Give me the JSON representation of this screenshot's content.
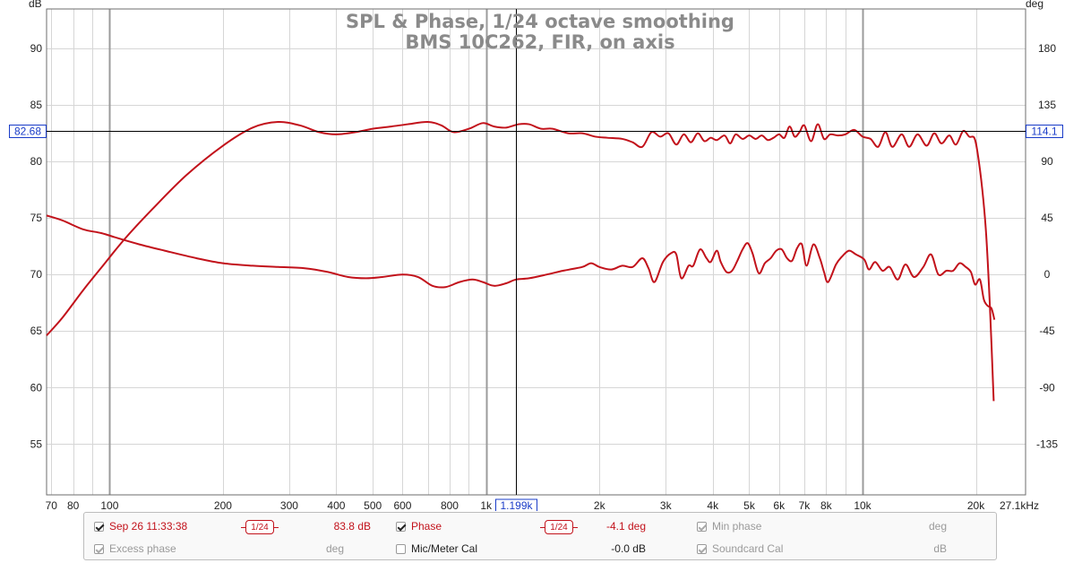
{
  "chart_data": {
    "type": "line",
    "title": "SPL & Phase, 1/24 octave smoothing",
    "subtitle": "BMS 10C262, FIR, on axis",
    "xscale": "log",
    "xlim": [
      68,
      27100
    ],
    "x_ticks": [
      {
        "v": 70,
        "label": "70"
      },
      {
        "v": 80,
        "label": "80"
      },
      {
        "v": 100,
        "label": "100"
      },
      {
        "v": 200,
        "label": "200"
      },
      {
        "v": 300,
        "label": "300"
      },
      {
        "v": 400,
        "label": "400"
      },
      {
        "v": 500,
        "label": "500"
      },
      {
        "v": 600,
        "label": "600"
      },
      {
        "v": 800,
        "label": "800"
      },
      {
        "v": 1000,
        "label": "1k"
      },
      {
        "v": 2000,
        "label": "2k"
      },
      {
        "v": 3000,
        "label": "3k"
      },
      {
        "v": 4000,
        "label": "4k"
      },
      {
        "v": 5000,
        "label": "5k"
      },
      {
        "v": 6000,
        "label": "6k"
      },
      {
        "v": 7000,
        "label": "7k"
      },
      {
        "v": 8000,
        "label": "8k"
      },
      {
        "v": 10000,
        "label": "10k"
      },
      {
        "v": 20000,
        "label": "20k"
      }
    ],
    "x_end_label": "27.1kHz",
    "y_left": {
      "unit": "dB",
      "range": [
        50.5,
        93.5
      ],
      "ticks": [
        55,
        60,
        65,
        70,
        75,
        80,
        85,
        90
      ]
    },
    "y_right": {
      "unit": "deg",
      "range": [
        -175.5,
        211.5
      ],
      "ticks": [
        -135,
        -90,
        -45,
        0,
        45,
        90,
        135,
        180
      ]
    },
    "grid": true,
    "cursor": {
      "x": 1199,
      "x_label": "1.199k",
      "y_left_label": "82.68",
      "y_right_label": "114.1"
    },
    "series": [
      {
        "name": "Sep 26 11:33:38",
        "axis": "left",
        "color": "#c2121b",
        "points": [
          [
            68,
            64.6
          ],
          [
            75,
            66.2
          ],
          [
            85,
            68.6
          ],
          [
            95,
            70.6
          ],
          [
            110,
            73.2
          ],
          [
            130,
            75.8
          ],
          [
            160,
            78.8
          ],
          [
            200,
            81.4
          ],
          [
            240,
            83.0
          ],
          [
            280,
            83.5
          ],
          [
            320,
            83.2
          ],
          [
            360,
            82.6
          ],
          [
            400,
            82.4
          ],
          [
            450,
            82.6
          ],
          [
            500,
            82.9
          ],
          [
            560,
            83.1
          ],
          [
            620,
            83.3
          ],
          [
            700,
            83.5
          ],
          [
            760,
            83.2
          ],
          [
            820,
            82.6
          ],
          [
            900,
            82.9
          ],
          [
            980,
            83.4
          ],
          [
            1050,
            83.1
          ],
          [
            1130,
            83.0
          ],
          [
            1220,
            83.3
          ],
          [
            1300,
            83.3
          ],
          [
            1400,
            82.9
          ],
          [
            1500,
            82.9
          ],
          [
            1650,
            82.5
          ],
          [
            1800,
            82.5
          ],
          [
            1950,
            82.2
          ],
          [
            2100,
            82.1
          ],
          [
            2300,
            82.0
          ],
          [
            2450,
            81.7
          ],
          [
            2600,
            81.3
          ],
          [
            2750,
            82.6
          ],
          [
            2900,
            82.2
          ],
          [
            3050,
            82.5
          ],
          [
            3200,
            81.5
          ],
          [
            3350,
            82.4
          ],
          [
            3500,
            81.7
          ],
          [
            3650,
            82.5
          ],
          [
            3800,
            81.8
          ],
          [
            3950,
            82.1
          ],
          [
            4100,
            81.9
          ],
          [
            4300,
            82.3
          ],
          [
            4450,
            81.6
          ],
          [
            4600,
            82.4
          ],
          [
            4800,
            82.0
          ],
          [
            5000,
            82.3
          ],
          [
            5200,
            82.0
          ],
          [
            5400,
            82.3
          ],
          [
            5600,
            81.9
          ],
          [
            5800,
            82.1
          ],
          [
            6000,
            82.4
          ],
          [
            6200,
            82.1
          ],
          [
            6400,
            83.1
          ],
          [
            6600,
            82.2
          ],
          [
            6800,
            82.6
          ],
          [
            7000,
            83.2
          ],
          [
            7300,
            81.8
          ],
          [
            7600,
            83.3
          ],
          [
            7900,
            82.0
          ],
          [
            8200,
            82.4
          ],
          [
            8600,
            82.3
          ],
          [
            9000,
            82.4
          ],
          [
            9500,
            82.8
          ],
          [
            10000,
            82.2
          ],
          [
            10500,
            82.0
          ],
          [
            11000,
            81.3
          ],
          [
            11500,
            82.6
          ],
          [
            12000,
            81.3
          ],
          [
            12700,
            82.4
          ],
          [
            13300,
            81.3
          ],
          [
            14000,
            82.4
          ],
          [
            14800,
            81.4
          ],
          [
            15500,
            82.5
          ],
          [
            16200,
            81.6
          ],
          [
            17000,
            82.3
          ],
          [
            17700,
            81.5
          ],
          [
            18500,
            82.7
          ],
          [
            19200,
            82.2
          ],
          [
            19800,
            82.1
          ],
          [
            20200,
            80.8
          ],
          [
            20800,
            77.5
          ],
          [
            21300,
            73.5
          ],
          [
            21800,
            67.0
          ],
          [
            22300,
            58.8
          ]
        ]
      },
      {
        "name": "Phase",
        "axis": "right",
        "color": "#c2121b",
        "points": [
          [
            68,
            47
          ],
          [
            75,
            43
          ],
          [
            85,
            36
          ],
          [
            95,
            33
          ],
          [
            105,
            29
          ],
          [
            120,
            24
          ],
          [
            140,
            19
          ],
          [
            170,
            13
          ],
          [
            200,
            9
          ],
          [
            240,
            7
          ],
          [
            280,
            6
          ],
          [
            330,
            5
          ],
          [
            380,
            2
          ],
          [
            430,
            -2
          ],
          [
            480,
            -3
          ],
          [
            530,
            -2
          ],
          [
            600,
            0
          ],
          [
            660,
            -2
          ],
          [
            720,
            -9
          ],
          [
            780,
            -10
          ],
          [
            850,
            -6
          ],
          [
            920,
            -4
          ],
          [
            980,
            -6
          ],
          [
            1050,
            -9
          ],
          [
            1130,
            -7
          ],
          [
            1200,
            -4
          ],
          [
            1300,
            -3
          ],
          [
            1450,
            0
          ],
          [
            1600,
            3
          ],
          [
            1800,
            6
          ],
          [
            1900,
            9
          ],
          [
            2000,
            6
          ],
          [
            2150,
            4
          ],
          [
            2300,
            7
          ],
          [
            2450,
            6
          ],
          [
            2600,
            13
          ],
          [
            2700,
            5
          ],
          [
            2800,
            -6
          ],
          [
            2950,
            10
          ],
          [
            3100,
            17
          ],
          [
            3200,
            16
          ],
          [
            3300,
            -3
          ],
          [
            3450,
            7
          ],
          [
            3550,
            7
          ],
          [
            3700,
            20
          ],
          [
            3850,
            13
          ],
          [
            3950,
            10
          ],
          [
            4100,
            19
          ],
          [
            4200,
            10
          ],
          [
            4350,
            2
          ],
          [
            4500,
            3
          ],
          [
            4650,
            11
          ],
          [
            4800,
            20
          ],
          [
            4950,
            25
          ],
          [
            5100,
            17
          ],
          [
            5300,
            1
          ],
          [
            5500,
            9
          ],
          [
            5700,
            13
          ],
          [
            5900,
            19
          ],
          [
            6100,
            20
          ],
          [
            6300,
            13
          ],
          [
            6500,
            11
          ],
          [
            6700,
            21
          ],
          [
            6900,
            24
          ],
          [
            7100,
            7
          ],
          [
            7400,
            24
          ],
          [
            7700,
            13
          ],
          [
            7900,
            2
          ],
          [
            8100,
            -6
          ],
          [
            8500,
            8
          ],
          [
            8800,
            14
          ],
          [
            9200,
            19
          ],
          [
            9600,
            16
          ],
          [
            10100,
            12
          ],
          [
            10400,
            4
          ],
          [
            10800,
            10
          ],
          [
            11300,
            3
          ],
          [
            11800,
            6
          ],
          [
            12400,
            -4
          ],
          [
            13000,
            8
          ],
          [
            13700,
            -2
          ],
          [
            14500,
            6
          ],
          [
            15200,
            16
          ],
          [
            15900,
            0
          ],
          [
            16700,
            3
          ],
          [
            17400,
            3
          ],
          [
            18100,
            9
          ],
          [
            18800,
            6
          ],
          [
            19400,
            2
          ],
          [
            19900,
            -8
          ],
          [
            20500,
            -4
          ],
          [
            21000,
            -20
          ],
          [
            21500,
            -25
          ],
          [
            22000,
            -27
          ],
          [
            22400,
            -36
          ]
        ]
      }
    ]
  },
  "legend": {
    "row1": [
      {
        "label": "Sep 26 11:33:38",
        "checked": true,
        "color": "red",
        "smoothing": "1/24",
        "value": "83.8 dB"
      },
      {
        "label": "Phase",
        "checked": true,
        "color": "red",
        "smoothing": "1/24",
        "value": "-4.1 deg"
      },
      {
        "label": "Min phase",
        "checked": true,
        "disabled": true,
        "value": "deg"
      }
    ],
    "row2": [
      {
        "label": "Excess phase",
        "checked": true,
        "disabled": true,
        "value": "deg"
      },
      {
        "label": "Mic/Meter Cal",
        "checked": false,
        "value": "-0.0 dB"
      },
      {
        "label": "Soundcard Cal",
        "checked": true,
        "disabled": true,
        "value": "dB"
      }
    ]
  }
}
